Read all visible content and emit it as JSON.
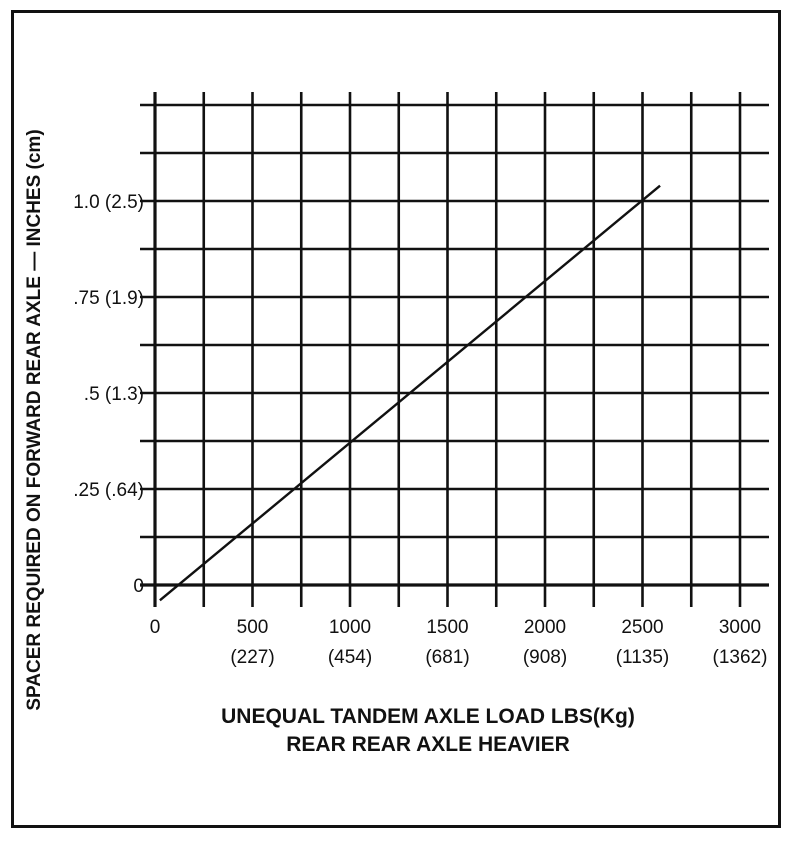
{
  "chart_data": {
    "type": "line",
    "ylabel": "SPACER REQUIRED ON FORWARD REAR AXLE — INCHES (cm)",
    "xlabel_lines": [
      "UNEQUAL TANDEM AXLE LOAD LBS(Kg)",
      "REAR REAR AXLE HEAVIER"
    ],
    "xlim": [
      0,
      3200
    ],
    "ylim": [
      0,
      1.25
    ],
    "x_ticks": [
      {
        "value": 0,
        "label": "0",
        "metric": ""
      },
      {
        "value": 500,
        "label": "500",
        "metric": "(227)"
      },
      {
        "value": 1000,
        "label": "1000",
        "metric": "(454)"
      },
      {
        "value": 1500,
        "label": "1500",
        "metric": "(681)"
      },
      {
        "value": 2000,
        "label": "2000",
        "metric": "(908)"
      },
      {
        "value": 2500,
        "label": "2500",
        "metric": "(1135)"
      },
      {
        "value": 3000,
        "label": "3000",
        "metric": "(1362)"
      }
    ],
    "y_ticks": [
      {
        "value": 0,
        "label": "0"
      },
      {
        "value": 0.25,
        "label": ".25 (.64)"
      },
      {
        "value": 0.5,
        "label": ".5 (1.3)"
      },
      {
        "value": 0.75,
        "label": ".75 (1.9)"
      },
      {
        "value": 1.0,
        "label": "1.0 (2.5)"
      }
    ],
    "x_gridlines": [
      0,
      250,
      500,
      750,
      1000,
      1250,
      1500,
      1750,
      2000,
      2250,
      2500,
      2750,
      3000
    ],
    "y_gridlines": [
      0,
      0.125,
      0.25,
      0.375,
      0.5,
      0.625,
      0.75,
      0.875,
      1.0,
      1.125,
      1.25
    ],
    "grid": true,
    "series": [
      {
        "x": [
          25,
          2590
        ],
        "y": [
          -0.04,
          1.04
        ]
      }
    ]
  }
}
